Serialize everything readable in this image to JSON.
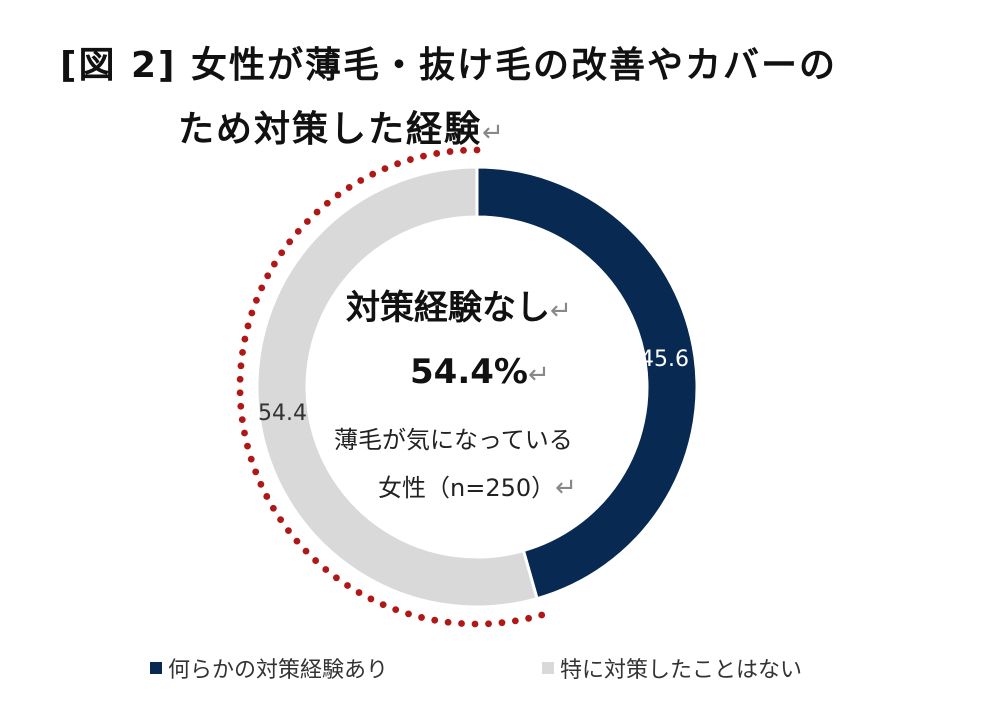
{
  "title": {
    "line1": "[図 2]  女性が薄毛・抜け毛の改善やカバーの",
    "line2": "ため対策した経験",
    "return_mark": "↵"
  },
  "center": {
    "heading": "対策経験なし",
    "value": "54.4%",
    "sub_line1": "薄毛が気になっている",
    "sub_line2": "女性（n=250）",
    "return_mark": "↵"
  },
  "chart_data": {
    "type": "pie",
    "variant": "donut",
    "start_angle_deg": 0,
    "direction": "clockwise",
    "categories": [
      "何らかの対策経験あり",
      "特に対策したことはない"
    ],
    "values": [
      45.6,
      54.4
    ],
    "data_labels": [
      "45.6",
      "54.4"
    ],
    "colors": [
      "#082a52",
      "#d9d9d9"
    ],
    "highlight": {
      "category": "特に対策したことはない",
      "style": "dotted-outline",
      "color": "#b01818"
    },
    "legend_position": "bottom"
  }
}
